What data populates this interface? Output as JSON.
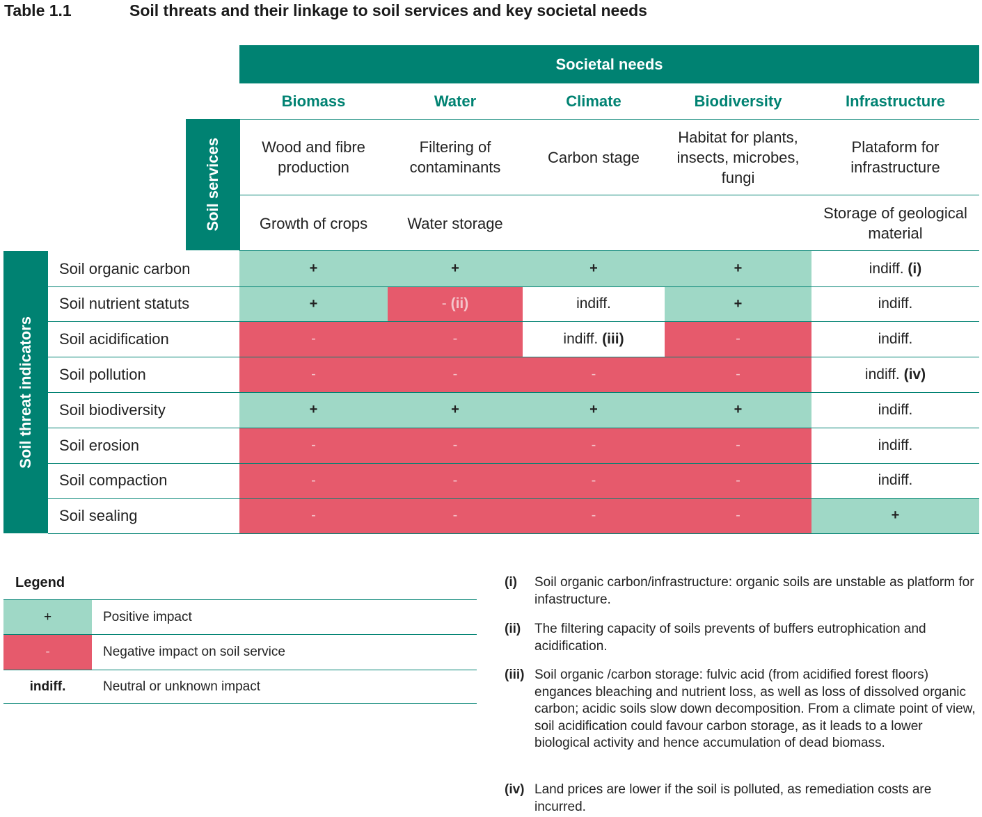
{
  "title": {
    "number": "Table 1.1",
    "text": "Soil threats and their linkage to soil services and key societal needs"
  },
  "societal_needs_header": "Societal needs",
  "soil_services_label": "Soil services",
  "threat_label": "Soil threat indicators",
  "needs": [
    "Biomass",
    "Water",
    "Climate",
    "Biodiversity",
    "Infrastructure"
  ],
  "services_row1": [
    "Wood and fibre production",
    "Filtering of contaminants",
    "Carbon stage",
    "Habitat for plants, insects, microbes, fungi",
    "Plataform for infrastructure"
  ],
  "services_row2": [
    "Growth of crops",
    "Water storage",
    "",
    "",
    "Storage of geological material"
  ],
  "rows": [
    {
      "label": "Soil organic carbon",
      "cells": [
        {
          "type": "pos",
          "text": "+"
        },
        {
          "type": "pos",
          "text": "+"
        },
        {
          "type": "pos",
          "text": "+"
        },
        {
          "type": "pos",
          "text": "+"
        },
        {
          "type": "neu",
          "text": "indiff. ",
          "note": "(i)"
        }
      ]
    },
    {
      "label": "Soil nutrient statuts",
      "cells": [
        {
          "type": "pos",
          "text": "+"
        },
        {
          "type": "neg",
          "text": "- ",
          "note": "(ii)"
        },
        {
          "type": "neu",
          "text": "indiff."
        },
        {
          "type": "pos",
          "text": "+"
        },
        {
          "type": "neu",
          "text": "indiff."
        }
      ]
    },
    {
      "label": "Soil acidification",
      "cells": [
        {
          "type": "neg",
          "text": "-"
        },
        {
          "type": "neg",
          "text": "-"
        },
        {
          "type": "neu",
          "text": "indiff. ",
          "note": "(iii)"
        },
        {
          "type": "neg",
          "text": "-"
        },
        {
          "type": "neu",
          "text": "indiff."
        }
      ]
    },
    {
      "label": "Soil pollution",
      "cells": [
        {
          "type": "neg",
          "text": "-"
        },
        {
          "type": "neg",
          "text": "-"
        },
        {
          "type": "neg",
          "text": "-"
        },
        {
          "type": "neg",
          "text": "-"
        },
        {
          "type": "neu",
          "text": "indiff. ",
          "note": "(iv)"
        }
      ]
    },
    {
      "label": "Soil biodiversity",
      "cells": [
        {
          "type": "pos",
          "text": "+"
        },
        {
          "type": "pos",
          "text": "+"
        },
        {
          "type": "pos",
          "text": "+"
        },
        {
          "type": "pos",
          "text": "+"
        },
        {
          "type": "neu",
          "text": "indiff."
        }
      ]
    },
    {
      "label": "Soil erosion",
      "cells": [
        {
          "type": "neg",
          "text": "-"
        },
        {
          "type": "neg",
          "text": "-"
        },
        {
          "type": "neg",
          "text": "-"
        },
        {
          "type": "neg",
          "text": "-"
        },
        {
          "type": "neu",
          "text": "indiff."
        }
      ]
    },
    {
      "label": "Soil compaction",
      "cells": [
        {
          "type": "neg",
          "text": "-"
        },
        {
          "type": "neg",
          "text": "-"
        },
        {
          "type": "neg",
          "text": "-"
        },
        {
          "type": "neg",
          "text": "-"
        },
        {
          "type": "neu",
          "text": "indiff."
        }
      ]
    },
    {
      "label": "Soil sealing",
      "cells": [
        {
          "type": "neg",
          "text": "-"
        },
        {
          "type": "neg",
          "text": "-"
        },
        {
          "type": "neg",
          "text": "-"
        },
        {
          "type": "neg",
          "text": "-"
        },
        {
          "type": "pos",
          "text": "+"
        }
      ]
    }
  ],
  "legend": {
    "title": "Legend",
    "items": [
      {
        "type": "pos",
        "symbol": "+",
        "desc": "Positive impact"
      },
      {
        "type": "neg",
        "symbol": "-",
        "desc": "Negative impact on soil service"
      },
      {
        "type": "neu",
        "symbol": "indiff.",
        "desc": "Neutral or unknown impact"
      }
    ]
  },
  "notes": [
    {
      "num": "(i)",
      "text": "Soil organic carbon/infrastructure: organic soils are unstable as platform for infastructure."
    },
    {
      "num": "(ii)",
      "text": "The filtering capacity of soils prevents of buffers eutrophication and acidification."
    },
    {
      "num": "(iii)",
      "text": "Soil organic /carbon storage: fulvic acid (from acidified forest floors) engances bleaching and nutrient loss, as well as loss of dissolved organic carbon; acidic soils slow down decomposition. From a climate point of view, soil acidification could favour carbon storage, as it leads to a lower biological activity and hence accumulation of dead biomass."
    },
    {
      "num": "(iv)",
      "text": "Land prices are lower if the soil is polluted, as remediation costs are incurred."
    }
  ]
}
